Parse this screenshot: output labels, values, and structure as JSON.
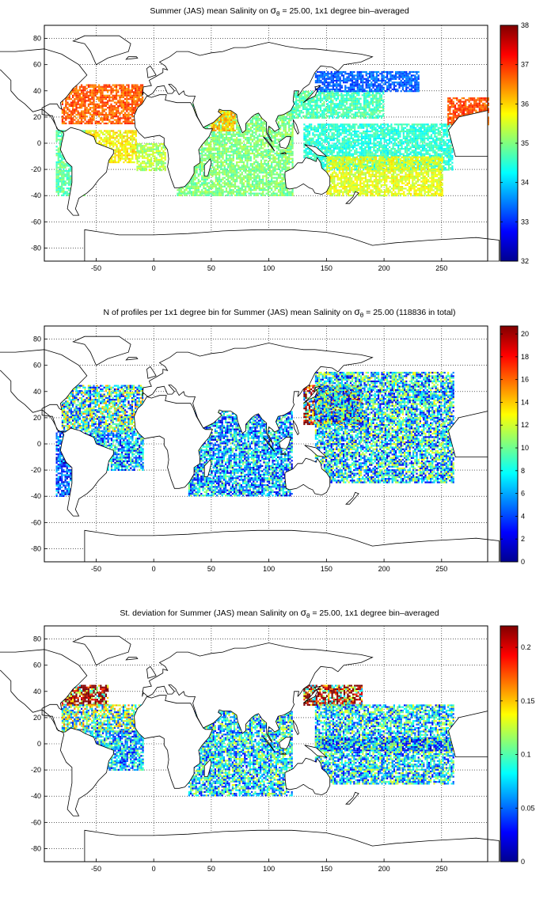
{
  "panels": [
    {
      "title_prefix": "Summer (JAS) mean Salinity on ",
      "title_suffix": " = 25.00, 1x1 degree bin–averaged",
      "sigma_symbol": "σ",
      "sigma_sub": "θ",
      "colorbar_ticks": [
        "32",
        "33",
        "34",
        "35",
        "36",
        "37",
        "38"
      ],
      "colorbar_range": [
        32,
        38
      ]
    },
    {
      "title_prefix": "N of profiles per 1x1 degree bin for Summer (JAS) mean Salinity on ",
      "title_suffix": " = 25.00 (118836 in total)",
      "sigma_symbol": "σ",
      "sigma_sub": "θ",
      "colorbar_ticks": [
        "0",
        "2",
        "4",
        "6",
        "8",
        "10",
        "12",
        "14",
        "16",
        "18",
        "20"
      ],
      "colorbar_range": [
        0,
        20.7
      ]
    },
    {
      "title_prefix": "St. deviation for Summer (JAS) mean Salinity on ",
      "title_suffix": " = 25.00, 1x1 degree bin–averaged",
      "sigma_symbol": "σ",
      "sigma_sub": "θ",
      "colorbar_ticks": [
        "0",
        "0.05",
        "0.1",
        "0.15",
        "0.2"
      ],
      "colorbar_range": [
        0,
        0.22
      ]
    }
  ],
  "map_axes": {
    "x_ticks": [
      "-50",
      "0",
      "50",
      "100",
      "150",
      "200",
      "250"
    ],
    "y_ticks": [
      "80",
      "60",
      "40",
      "20",
      "0",
      "-20",
      "-40",
      "-60",
      "-80"
    ]
  },
  "chart_data": [
    {
      "type": "heatmap",
      "title": "Summer (JAS) mean Salinity on σθ = 25.00, 1x1 degree bin–averaged",
      "xlim": [
        -95,
        290
      ],
      "ylim": [
        -90,
        90
      ],
      "x_ticks": [
        -50,
        0,
        50,
        100,
        150,
        200,
        250
      ],
      "y_ticks": [
        -80,
        -60,
        -40,
        -20,
        0,
        20,
        40,
        60,
        80
      ],
      "grid": true,
      "colorbar": {
        "min": 32,
        "max": 38,
        "ticks": [
          32,
          33,
          34,
          35,
          36,
          37,
          38
        ],
        "colormap": "jet"
      },
      "regions": [
        {
          "lon": [
            -80,
            -10
          ],
          "lat": [
            15,
            45
          ],
          "value": 36.7
        },
        {
          "lon": [
            -60,
            -15
          ],
          "lat": [
            -15,
            10
          ],
          "value": 35.8
        },
        {
          "lon": [
            -85,
            -60
          ],
          "lat": [
            -40,
            10
          ],
          "value": 34.8
        },
        {
          "lon": [
            -15,
            10
          ],
          "lat": [
            -20,
            0
          ],
          "value": 35.3
        },
        {
          "lon": [
            20,
            120
          ],
          "lat": [
            -40,
            30
          ],
          "value": 35.0
        },
        {
          "lon": [
            50,
            70
          ],
          "lat": [
            10,
            25
          ],
          "value": 36.1
        },
        {
          "lon": [
            120,
            200
          ],
          "lat": [
            20,
            40
          ],
          "value": 34.7
        },
        {
          "lon": [
            140,
            230
          ],
          "lat": [
            40,
            55
          ],
          "value": 33.3
        },
        {
          "lon": [
            130,
            260
          ],
          "lat": [
            -20,
            15
          ],
          "value": 34.5
        },
        {
          "lon": [
            150,
            250
          ],
          "lat": [
            -40,
            -10
          ],
          "value": 35.6
        },
        {
          "lon": [
            255,
            290
          ],
          "lat": [
            15,
            35
          ],
          "value": 36.8
        }
      ]
    },
    {
      "type": "heatmap",
      "title": "N of profiles per 1x1 degree bin for Summer (JAS) mean Salinity on σθ = 25.00 (118836 in total)",
      "total_profiles": 118836,
      "xlim": [
        -95,
        290
      ],
      "ylim": [
        -90,
        90
      ],
      "x_ticks": [
        -50,
        0,
        50,
        100,
        150,
        200,
        250
      ],
      "y_ticks": [
        -80,
        -60,
        -40,
        -20,
        0,
        20,
        40,
        60,
        80
      ],
      "grid": true,
      "colorbar": {
        "min": 0,
        "max": 20.7,
        "ticks": [
          0,
          2,
          4,
          6,
          8,
          10,
          12,
          14,
          16,
          18,
          20
        ],
        "colormap": "jet"
      },
      "regions": [
        {
          "lon": [
            -80,
            -10
          ],
          "lat": [
            10,
            45
          ],
          "value": 8
        },
        {
          "lon": [
            -60,
            -10
          ],
          "lat": [
            -20,
            10
          ],
          "value": 6
        },
        {
          "lon": [
            30,
            120
          ],
          "lat": [
            -40,
            25
          ],
          "value": 6
        },
        {
          "lon": [
            130,
            180
          ],
          "lat": [
            15,
            45
          ],
          "value": 15
        },
        {
          "lon": [
            140,
            260
          ],
          "lat": [
            -30,
            55
          ],
          "value": 7
        },
        {
          "lon": [
            -85,
            -70
          ],
          "lat": [
            -40,
            10
          ],
          "value": 4
        }
      ]
    },
    {
      "type": "heatmap",
      "title": "St. deviation for Summer (JAS) mean Salinity on σθ = 25.00, 1x1 degree bin–averaged",
      "xlim": [
        -95,
        290
      ],
      "ylim": [
        -90,
        90
      ],
      "x_ticks": [
        -50,
        0,
        50,
        100,
        150,
        200,
        250
      ],
      "y_ticks": [
        -80,
        -60,
        -40,
        -20,
        0,
        20,
        40,
        60,
        80
      ],
      "grid": true,
      "colorbar": {
        "min": 0,
        "max": 0.22,
        "ticks": [
          0,
          0.05,
          0.1,
          0.15,
          0.2
        ],
        "colormap": "jet"
      },
      "regions": [
        {
          "lon": [
            -80,
            -40
          ],
          "lat": [
            30,
            45
          ],
          "value": 0.22
        },
        {
          "lon": [
            -80,
            -10
          ],
          "lat": [
            10,
            30
          ],
          "value": 0.1
        },
        {
          "lon": [
            -60,
            -10
          ],
          "lat": [
            -20,
            10
          ],
          "value": 0.07
        },
        {
          "lon": [
            30,
            120
          ],
          "lat": [
            -40,
            25
          ],
          "value": 0.08
        },
        {
          "lon": [
            130,
            180
          ],
          "lat": [
            30,
            45
          ],
          "value": 0.2
        },
        {
          "lon": [
            140,
            260
          ],
          "lat": [
            -5,
            5
          ],
          "value": 0.02
        },
        {
          "lon": [
            140,
            260
          ],
          "lat": [
            -30,
            30
          ],
          "value": 0.08
        }
      ]
    }
  ]
}
